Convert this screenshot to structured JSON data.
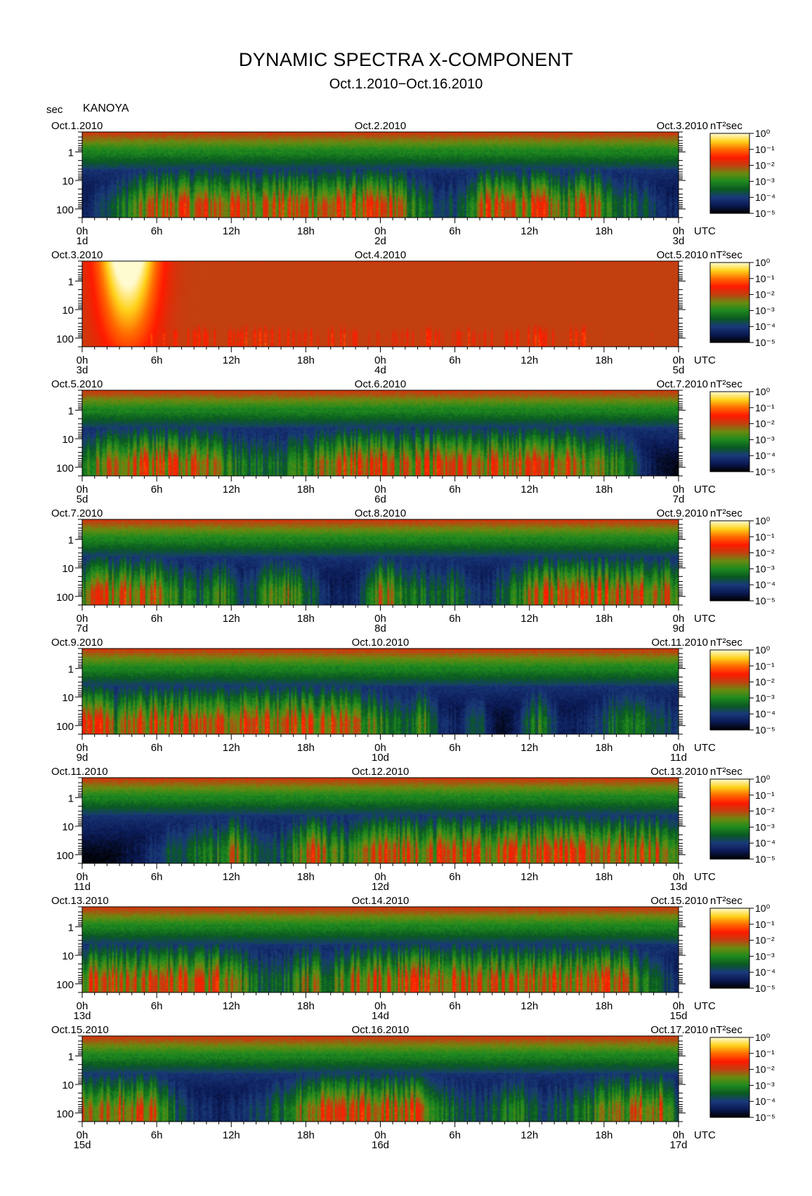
{
  "chart_data": {
    "type": "heatmap",
    "title": "DYNAMIC SPECTRA X-COMPONENT",
    "subtitle": "Oct.1.2010−Oct.16.2010",
    "y_unit": "sec",
    "station": "KANOYA",
    "x_unit": "UTC",
    "colorbar_unit": "nT²sec",
    "y_ticks": [
      "1",
      "10",
      "100"
    ],
    "y_scale": "log",
    "x_tick_labels": [
      "0h",
      "6h",
      "12h",
      "18h",
      "0h",
      "6h",
      "12h",
      "18h",
      "0h"
    ],
    "colorbar_levels": [
      "10⁰",
      "10⁻¹",
      "10⁻²",
      "10⁻³",
      "10⁻⁴",
      "10⁻⁵"
    ],
    "color_scale": [
      "#000000",
      "#0b1a55",
      "#1a3a7a",
      "#0a5a20",
      "#1f8a1f",
      "#6a8a10",
      "#c24010",
      "#ff1a00",
      "#ff6a00",
      "#ffd21a",
      "#fffbd0"
    ],
    "panels": [
      {
        "left_date": "Oct.1.2010",
        "mid_date": "Oct.2.2010",
        "right_date": "Oct.3.2010",
        "day_labels": [
          "1d",
          "2d",
          "3d"
        ]
      },
      {
        "left_date": "Oct.3.2010",
        "mid_date": "Oct.4.2010",
        "right_date": "Oct.5.2010",
        "day_labels": [
          "3d",
          "4d",
          "5d"
        ]
      },
      {
        "left_date": "Oct.5.2010",
        "mid_date": "Oct.6.2010",
        "right_date": "Oct.7.2010",
        "day_labels": [
          "5d",
          "6d",
          "7d"
        ]
      },
      {
        "left_date": "Oct.7.2010",
        "mid_date": "Oct.8.2010",
        "right_date": "Oct.9.2010",
        "day_labels": [
          "7d",
          "8d",
          "9d"
        ]
      },
      {
        "left_date": "Oct.9.2010",
        "mid_date": "Oct.10.2010",
        "right_date": "Oct.11.2010",
        "day_labels": [
          "9d",
          "10d",
          "11d"
        ]
      },
      {
        "left_date": "Oct.11.2010",
        "mid_date": "Oct.12.2010",
        "right_date": "Oct.13.2010",
        "day_labels": [
          "11d",
          "12d",
          "13d"
        ]
      },
      {
        "left_date": "Oct.13.2010",
        "mid_date": "Oct.14.2010",
        "right_date": "Oct.15.2010",
        "day_labels": [
          "13d",
          "14d",
          "15d"
        ]
      },
      {
        "left_date": "Oct.15.2010",
        "mid_date": "Oct.16.2010",
        "right_date": "Oct.17.2010",
        "day_labels": [
          "15d",
          "16d",
          "17d"
        ]
      }
    ]
  }
}
